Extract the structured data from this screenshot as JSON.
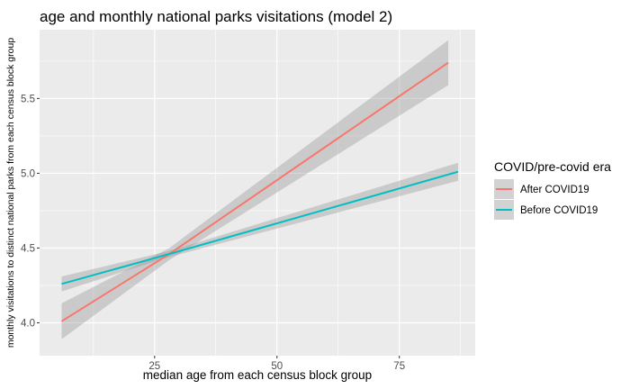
{
  "chart_data": {
    "type": "line",
    "title": "age and monthly national parks visitations (model 2)",
    "xlabel": "median age from each census block group",
    "ylabel": "monthly visitations to distinct national parks from each census block group",
    "xlim": [
      1.5,
      90.5
    ],
    "ylim": [
      3.78,
      5.96
    ],
    "x_ticks": [
      25,
      50,
      75
    ],
    "y_ticks": [
      4.0,
      4.5,
      5.0,
      5.5
    ],
    "x_tick_labels": [
      "25",
      "50",
      "75"
    ],
    "y_tick_labels": [
      "4.0",
      "4.5",
      "5.0",
      "5.5"
    ],
    "grid": true,
    "legend": {
      "title": "COVID/pre-covid era",
      "position": "right"
    },
    "series": [
      {
        "name": "After COVID19",
        "color": "#F8766D",
        "x": [
          6,
          28,
          85
        ],
        "y": [
          4.01,
          4.46,
          5.74
        ],
        "ci_lower": [
          3.89,
          4.42,
          5.59
        ],
        "ci_upper": [
          4.13,
          4.5,
          5.89
        ]
      },
      {
        "name": "Before COVID19",
        "color": "#00BFC4",
        "x": [
          6,
          28,
          87
        ],
        "y": [
          4.26,
          4.46,
          5.01
        ],
        "ci_lower": [
          4.21,
          4.44,
          4.95
        ],
        "ci_upper": [
          4.31,
          4.48,
          5.07
        ]
      }
    ]
  }
}
